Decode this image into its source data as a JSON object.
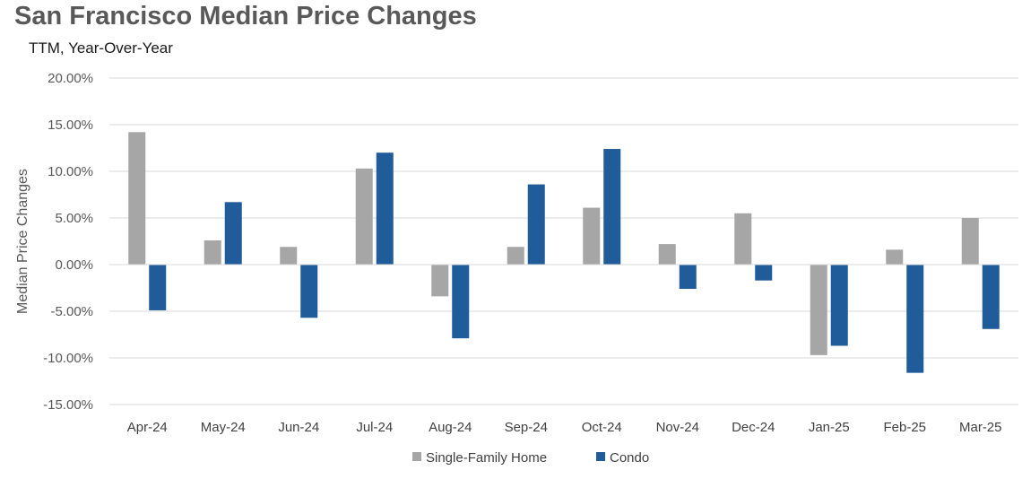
{
  "chart_data": {
    "type": "bar",
    "title": "San Francisco Median Price Changes",
    "subtitle": "TTM, Year-Over-Year",
    "ylabel": "Median Price Changes",
    "xlabel": "",
    "categories": [
      "Apr-24",
      "May-24",
      "Jun-24",
      "Jul-24",
      "Aug-24",
      "Sep-24",
      "Oct-24",
      "Nov-24",
      "Dec-24",
      "Jan-25",
      "Feb-25",
      "Mar-25"
    ],
    "series": [
      {
        "name": "Single-Family Home",
        "color": "#a6a6a6",
        "values": [
          14.2,
          2.6,
          1.9,
          10.3,
          -3.4,
          1.9,
          6.1,
          2.2,
          5.5,
          -9.7,
          1.6,
          5.0
        ]
      },
      {
        "name": "Condo",
        "color": "#1f5c99",
        "values": [
          -4.9,
          6.7,
          -5.7,
          12.0,
          -7.9,
          8.6,
          12.4,
          -2.6,
          -1.7,
          -8.7,
          -11.6,
          -6.9
        ]
      }
    ],
    "ylim": [
      -15,
      20
    ],
    "yticks": [
      20,
      15,
      10,
      5,
      0,
      -5,
      -10,
      -15
    ],
    "ytick_labels": [
      "20.00%",
      "15.00%",
      "10.00%",
      "5.00%",
      "0.00%",
      "-5.00%",
      "-10.00%",
      "-15.00%"
    ],
    "grid": true,
    "legend": "bottom-center"
  }
}
